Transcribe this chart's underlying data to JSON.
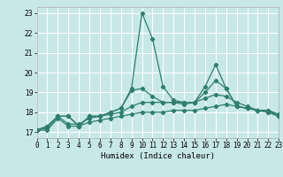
{
  "xlabel": "Humidex (Indice chaleur)",
  "xlim": [
    0,
    23
  ],
  "ylim": [
    16.7,
    23.3
  ],
  "yticks": [
    17,
    18,
    19,
    20,
    21,
    22,
    23
  ],
  "xticks": [
    0,
    1,
    2,
    3,
    4,
    5,
    6,
    7,
    8,
    9,
    10,
    11,
    12,
    13,
    14,
    15,
    16,
    17,
    18,
    19,
    20,
    21,
    22,
    23
  ],
  "bg_color": "#c8e8e8",
  "grid_color": "#ffffff",
  "line_color": "#2e7d6e",
  "curves": [
    [
      17.1,
      17.3,
      17.8,
      17.8,
      17.3,
      17.8,
      17.8,
      18.0,
      18.2,
      19.2,
      23.0,
      21.7,
      19.3,
      18.6,
      18.5,
      18.5,
      19.3,
      20.4,
      19.2,
      18.3,
      18.2,
      18.1,
      18.0,
      17.8
    ],
    [
      17.1,
      17.3,
      17.8,
      17.8,
      17.3,
      17.8,
      17.8,
      18.0,
      18.2,
      19.1,
      19.2,
      18.8,
      18.5,
      18.5,
      18.4,
      18.5,
      19.0,
      19.6,
      19.2,
      18.3,
      18.2,
      18.1,
      18.0,
      17.8
    ],
    [
      17.1,
      17.2,
      17.8,
      17.4,
      17.4,
      17.7,
      17.8,
      17.9,
      18.0,
      18.3,
      18.5,
      18.5,
      18.5,
      18.5,
      18.5,
      18.5,
      18.7,
      18.9,
      18.8,
      18.5,
      18.3,
      18.1,
      18.1,
      17.9
    ],
    [
      17.1,
      17.1,
      17.7,
      17.3,
      17.3,
      17.5,
      17.6,
      17.7,
      17.8,
      17.9,
      18.0,
      18.0,
      18.0,
      18.1,
      18.1,
      18.1,
      18.2,
      18.3,
      18.4,
      18.3,
      18.2,
      18.1,
      18.1,
      17.8
    ]
  ]
}
